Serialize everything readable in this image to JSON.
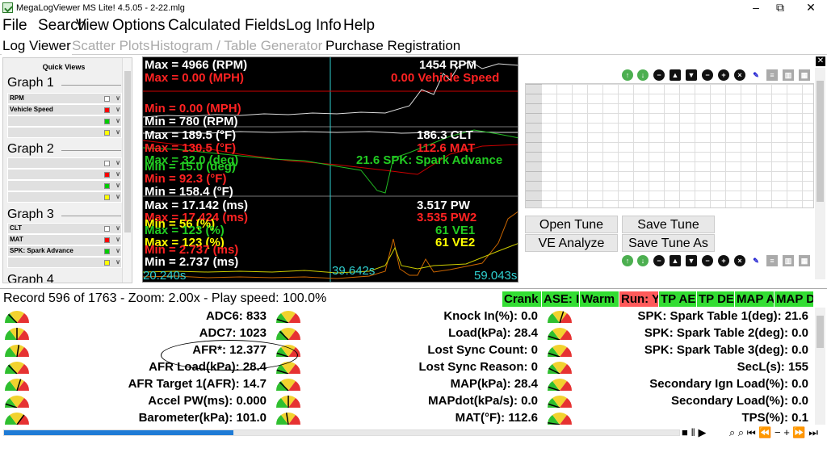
{
  "window": {
    "title": "MegaLogViewer MS Lite! 4.5.05 - 2-22.mlg",
    "minimize": "–",
    "maximize": "⧉",
    "close": "✕"
  },
  "menu": [
    "File",
    "Search",
    "View",
    "Options",
    "Calculated Fields",
    "Log Info",
    "Help"
  ],
  "tabs": [
    {
      "label": "Log Viewer",
      "state": "active"
    },
    {
      "label": "Scatter Plots",
      "state": "disabled"
    },
    {
      "label": "Histogram / Table Generator",
      "state": "disabled"
    },
    {
      "label": "Purchase Registration",
      "state": "normal"
    }
  ],
  "quick_views": {
    "title": "Quick Views",
    "graphs": [
      {
        "label": "Graph 1",
        "rows": [
          {
            "name": "RPM",
            "color": "#ffffff"
          },
          {
            "name": "Vehicle Speed",
            "color": "#ff0000"
          },
          {
            "name": "",
            "color": "#00cc00"
          },
          {
            "name": "",
            "color": "#ffff00"
          }
        ]
      },
      {
        "label": "Graph 2",
        "rows": [
          {
            "name": "",
            "color": "#ffffff"
          },
          {
            "name": "",
            "color": "#ff0000"
          },
          {
            "name": "",
            "color": "#00cc00"
          },
          {
            "name": "",
            "color": "#ffff00"
          }
        ]
      },
      {
        "label": "Graph 3",
        "rows": [
          {
            "name": "CLT",
            "color": "#ffffff"
          },
          {
            "name": "MAT",
            "color": "#ff0000"
          },
          {
            "name": "SPK: Spark Advance",
            "color": "#00cc00"
          },
          {
            "name": "",
            "color": "#ffff00"
          }
        ]
      },
      {
        "label": "Graph 4",
        "rows": []
      }
    ]
  },
  "chart": {
    "g1": {
      "max1": "Max = 4966 (RPM)",
      "max2": "Max = 0.00 (MPH)",
      "min2": "Min = 0.00 (MPH)",
      "min1": "Min = 780 (RPM)",
      "cur1": "1454 RPM",
      "cur2": "0.00 Vehicle Speed"
    },
    "g2": {
      "max1": "Max = 189.5 (°F)",
      "max2": "Max = 130.5 (°F)",
      "max3": "Max = 32.0 (deg)",
      "min3": "Min = 15.0 (deg)",
      "min2": "Min = 92.3 (°F)",
      "min1": "Min = 158.4 (°F)",
      "cur1": "186.3 CLT",
      "cur2": "112.6 MAT",
      "cur3": "21.6 SPK: Spark Advance"
    },
    "g3": {
      "max1": "Max = 17.142 (ms)",
      "max2": "Max = 17.424 (ms)",
      "min4": "Min = 56 (%)",
      "max3": "Max = 123 (%)",
      "max4": "Max = 123 (%)",
      "min2": "Min = 2.737 (ms)",
      "min1": "Min = 2.737 (ms)",
      "cur1": "3.517 PW",
      "cur2": "3.535 PW2",
      "cur3": "61 VE1",
      "cur4": "61 VE2"
    },
    "time_start": "20.240s",
    "time_cursor": "39.642s",
    "time_end": "59.043s"
  },
  "table_toolbar_icons": [
    "up-green-icon",
    "down-green-icon",
    "minus-icon",
    "arrow-up-icon",
    "arrow-down-icon",
    "minus-icon",
    "plus-icon",
    "x-icon",
    "pen-icon",
    "list-icon",
    "grid-icon",
    "table-icon"
  ],
  "tune_buttons": {
    "open": "Open Tune",
    "save": "Save Tune",
    "ve": "VE Analyze",
    "saveas": "Save Tune As"
  },
  "status": {
    "record": "Record 596 of 1763 - Zoom: 2.00x - Play speed: 100.0%"
  },
  "indicators": [
    {
      "label": "Crank",
      "color": "green"
    },
    {
      "label": "ASE: I",
      "color": "green"
    },
    {
      "label": "Warm",
      "color": "green"
    },
    {
      "label": "Run: Y",
      "color": "red"
    },
    {
      "label": "TP AE",
      "color": "green"
    },
    {
      "label": "TP DE",
      "color": "green"
    },
    {
      "label": "MAP A",
      "color": "green"
    },
    {
      "label": "MAP D",
      "color": "green"
    }
  ],
  "values": {
    "col1": [
      "ADC6: 833",
      "ADC7: 1023",
      "AFR*: 12.377",
      "AFR Load(kPa): 28.4",
      "AFR Target 1(AFR): 14.7",
      "Accel PW(ms): 0.000",
      "Barometer(kPa): 101.0"
    ],
    "col2": [
      "Knock In(%): 0.0",
      "Load(kPa): 28.4",
      "Lost Sync Count: 0",
      "Lost Sync Reason: 0",
      "MAP(kPa): 28.4",
      "MAPdot(kPa/s): 0.0",
      "MAT(°F): 112.6"
    ],
    "col3": [
      "SPK: Spark Table 1(deg): 21.6",
      "SPK: Spark Table 2(deg): 0.0",
      "SPK: Spark Table 3(deg): 0.0",
      "SecL(s): 155",
      "Secondary Ign Load(%): 0.0",
      "Secondary Load(%): 0.0",
      "TPS(%): 0.1"
    ]
  },
  "gauge_levels": {
    "col1": [
      0.25,
      0.5,
      0.55,
      0.25,
      0.6,
      0.1,
      0.7
    ],
    "col2": [
      0.1,
      0.25,
      0.1,
      0.1,
      0.25,
      0.5,
      0.45
    ],
    "col3": [
      0.6,
      0.1,
      0.1,
      0.15,
      0.1,
      0.1,
      0.05
    ]
  },
  "playback": {
    "progress": 0.34,
    "controls": "■ ‖ ▶",
    "zoom_controls": "⌕ ⌕ ⏮ ⏪ − + ⏩ ⏭"
  }
}
